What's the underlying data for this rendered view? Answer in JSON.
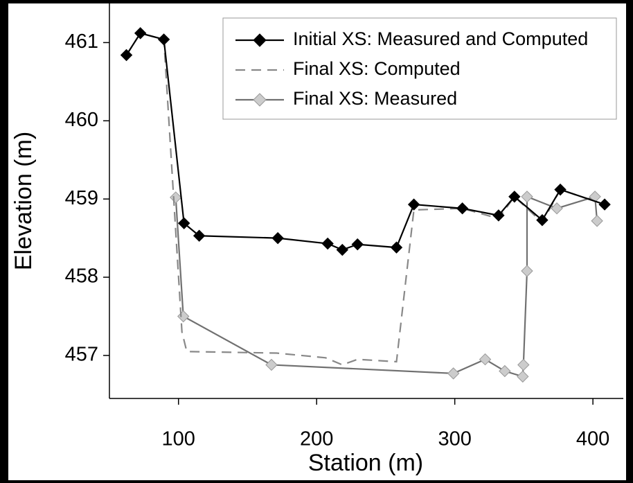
{
  "chart_data": {
    "type": "line",
    "x_label": "Station (m)",
    "y_label": "Elevation (m)",
    "xlim": [
      50,
      422
    ],
    "ylim": [
      456.45,
      461.5
    ],
    "xticks": [
      100,
      200,
      300,
      400
    ],
    "yticks": [
      457,
      458,
      459,
      460,
      461
    ],
    "legend": "upper right",
    "series": [
      {
        "name": "Initial XS: Measured and Computed",
        "color": "#000000",
        "linestyle": "solid",
        "marker": "diamond",
        "marker_color": "#000000",
        "x": [
          62.3,
          72.4,
          89.4,
          104,
          115,
          171.9,
          208,
          218.6,
          229.6,
          257.8,
          270.4,
          305.5,
          331.7,
          343.2,
          363.3,
          376.4,
          408.5
        ],
        "values": [
          460.84,
          461.12,
          461.04,
          458.69,
          458.53,
          458.5,
          458.43,
          458.35,
          458.42,
          458.38,
          458.93,
          458.88,
          458.79,
          459.03,
          458.73,
          459.12,
          458.93
        ]
      },
      {
        "name": "Final XS: Computed",
        "color": "#888888",
        "linestyle": "dashed",
        "marker": null,
        "marker_color": null,
        "x": [
          62.3,
          72.4,
          89.4,
          102.5,
          106,
          171,
          206.5,
          218.6,
          229.6,
          257.8,
          270.4,
          305.5,
          331.7,
          343.2,
          363.3,
          376.4,
          408.5
        ],
        "values": [
          460.84,
          461.12,
          461.04,
          457.3,
          457.05,
          457.03,
          456.97,
          456.88,
          456.95,
          456.92,
          458.86,
          458.88,
          458.75,
          459.03,
          458.7,
          459.12,
          458.93
        ]
      },
      {
        "name": "Final XS: Measured",
        "color": "#707070",
        "linestyle": "solid",
        "marker": "diamond",
        "marker_color": "#cccccc",
        "x": [
          98,
          103.5,
          167.3,
          299,
          322,
          336.2,
          349.2,
          349.7,
          352.3,
          352.3,
          373.9,
          401.5,
          403
        ],
        "values": [
          459.02,
          457.5,
          456.88,
          456.77,
          456.95,
          456.8,
          456.73,
          456.88,
          458.08,
          459.03,
          458.88,
          459.03,
          458.72
        ]
      }
    ]
  }
}
